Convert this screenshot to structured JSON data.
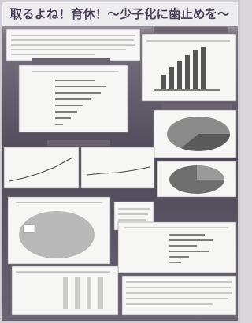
{
  "header": {
    "title": "取るよね！育休！～少子化に歯止めを～"
  }
}
